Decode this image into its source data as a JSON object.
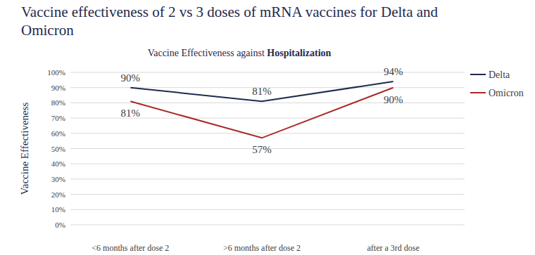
{
  "chart_data": {
    "type": "line",
    "title": "Vaccine effectiveness of 2 vs 3 doses of mRNA vaccines for Delta and Omicron",
    "subtitle": "Vaccine Effectiveness against Hospitalization",
    "y_label": "Vaccine Effectiveness",
    "categories": [
      "<6 months after dose 2",
      ">6 months after dose 2",
      "after a 3rd dose"
    ],
    "series": [
      {
        "name": "Delta",
        "color": "#1f2a4d",
        "values": [
          90,
          81,
          94
        ],
        "value_labels": [
          "90%",
          "81%",
          "94%"
        ]
      },
      {
        "name": "Omicron",
        "color": "#a8282a",
        "values": [
          81,
          57,
          90
        ],
        "value_labels": [
          "81%",
          "57%",
          "90%"
        ]
      }
    ],
    "ylim": [
      0,
      100
    ],
    "yticks": [
      {
        "value": 0,
        "label": "0%"
      },
      {
        "value": 10,
        "label": "10%"
      },
      {
        "value": 20,
        "label": "20%"
      },
      {
        "value": 30,
        "label": "30%"
      },
      {
        "value": 40,
        "label": "40%"
      },
      {
        "value": 50,
        "label": "50%"
      },
      {
        "value": 60,
        "label": "60%"
      },
      {
        "value": 70,
        "label": "70%"
      },
      {
        "value": 80,
        "label": "80%"
      },
      {
        "value": 90,
        "label": "90%"
      },
      {
        "value": 100,
        "label": "100%"
      }
    ],
    "grid": true,
    "legend": "right",
    "data_labels": true,
    "marker": "none",
    "line_style": "solid"
  }
}
